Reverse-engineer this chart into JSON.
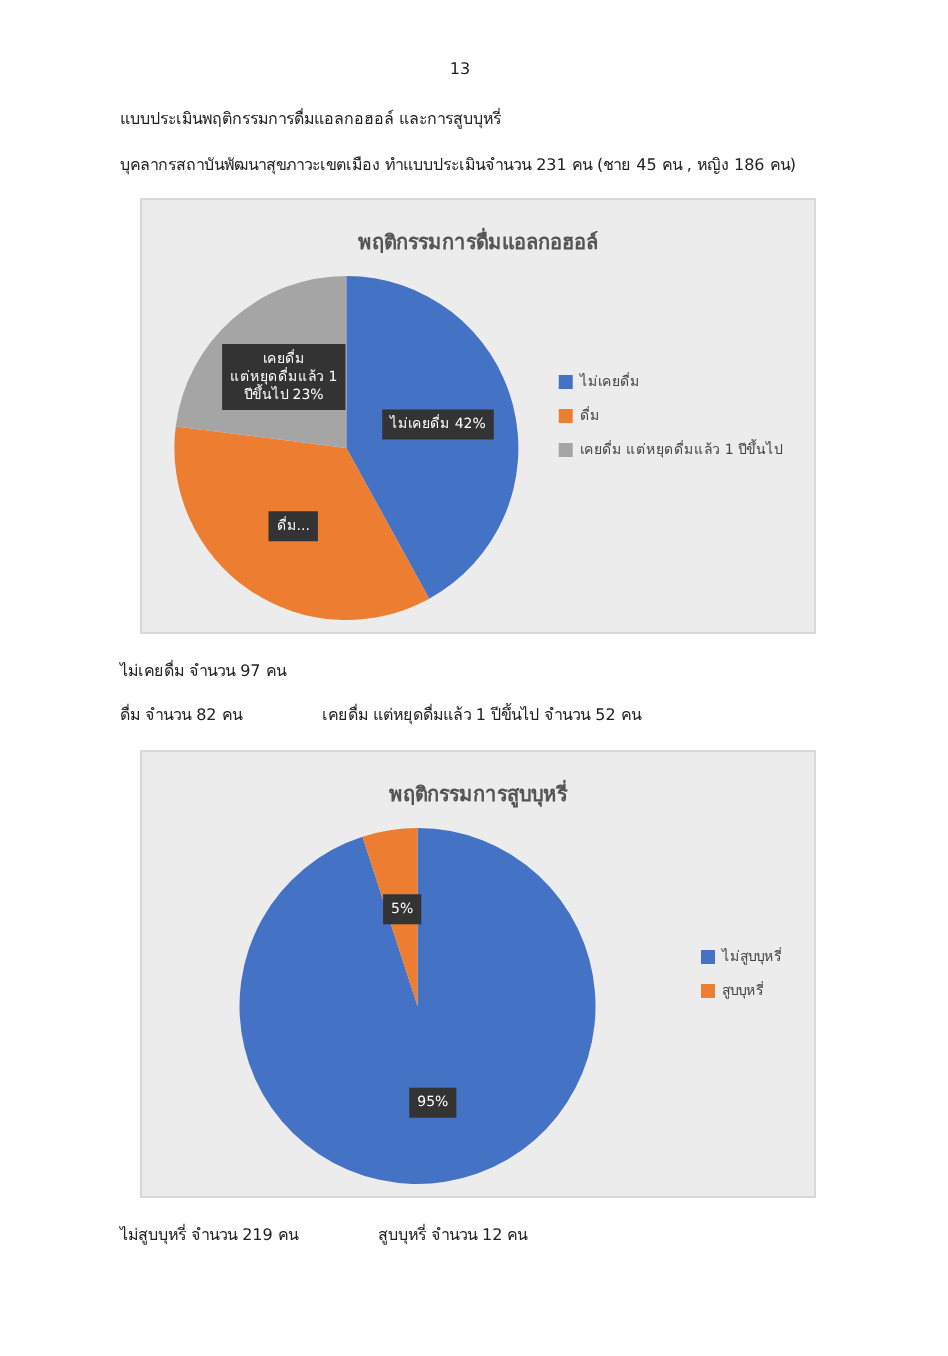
{
  "chart_data": [
    {
      "type": "pie",
      "title": "พฤติกรรมการดื่มแอลกอฮอล์",
      "categories": [
        "ไม่เคยดื่ม",
        "ดื่ม",
        "เคยดื่ม แต่หยุดดื่มแล้ว 1 ปีขึ้นไป"
      ],
      "values": [
        42,
        35,
        23
      ],
      "colors": [
        "#4472c4",
        "#ed7d31",
        "#a5a5a5"
      ],
      "value_labels": [
        "ไม่เคยดื่ม 42%",
        "ดื่ม...",
        "เคยดื่ม แต่หยุดดื่มแล้ว 1 ปีขึ้นไป 23%"
      ],
      "legend": "right",
      "annotations": [
        "13",
        "แบบประเมินพฤติกรรมการดื่มแอลกอฮอล์ และการสูบบุหรี่",
        "บุคลากรสถาบันพัฒนาสุขภาวะเขตเมือง ทำแบบประเมินจำนวน 231 คน (ชาย 45 คน , หญิง 186 คน)",
        "ไม่เคยดื่ม จำนวน 97 คน",
        "ดื่ม จำนวน 82 คน",
        "เคยดื่ม แต่หยุดดื่มแล้ว 1 ปีขึ้นไป จำนวน 52 คน"
      ]
    },
    {
      "type": "pie",
      "title": "พฤติกรรมการสูบบุหรี่",
      "categories": [
        "ไม่สูบบุหรี่",
        "สูบบุหรี่"
      ],
      "values": [
        95,
        5
      ],
      "colors": [
        "#4472c4",
        "#ed7d31"
      ],
      "value_labels": [
        "95%",
        "5%"
      ],
      "legend": "right",
      "annotations": [
        "ไม่สูบบุหรี่ จำนวน 219 คน",
        "สูบบุหรี่ จำนวน 12 คน"
      ]
    }
  ]
}
